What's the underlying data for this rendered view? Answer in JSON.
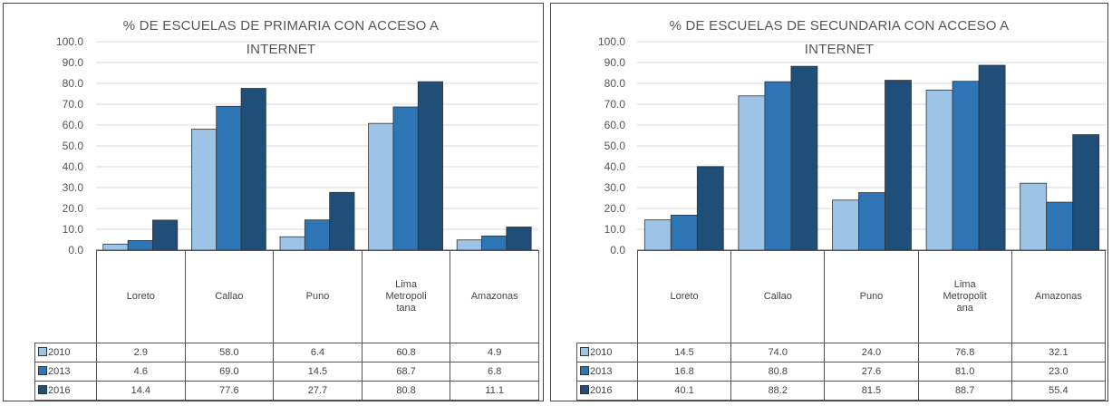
{
  "series_colors": {
    "2010": "#9dc3e6",
    "2013": "#2e75b6",
    "2016": "#1f4e79"
  },
  "chart_data": [
    {
      "type": "bar",
      "title": "% DE ESCUELAS DE PRIMARIA CON ACCESO A INTERNET",
      "title_lines": [
        "% DE ESCUELAS DE PRIMARIA CON ACCESO A",
        "INTERNET"
      ],
      "categories": [
        "Loreto",
        "Callao",
        "Puno",
        "Lima Metropolitana",
        "Amazonas"
      ],
      "category_lines": [
        [
          "Loreto"
        ],
        [
          "Callao"
        ],
        [
          "Puno"
        ],
        [
          "Lima",
          "Metropoli",
          "tana"
        ],
        [
          "Amazonas"
        ]
      ],
      "y_ticks": [
        "100.0",
        "90.0",
        "80.0",
        "70.0",
        "60.0",
        "50.0",
        "40.0",
        "30.0",
        "20.0",
        "10.0",
        "0.0"
      ],
      "ylim": [
        0,
        100
      ],
      "grid": true,
      "legend": "data-table",
      "series": [
        {
          "name": "2010",
          "values": [
            2.9,
            58.0,
            6.4,
            60.8,
            4.9
          ],
          "labels": [
            "2.9",
            "58.0",
            "6.4",
            "60.8",
            "4.9"
          ]
        },
        {
          "name": "2013",
          "values": [
            4.6,
            69.0,
            14.5,
            68.7,
            6.8
          ],
          "labels": [
            "4.6",
            "69.0",
            "14.5",
            "68.7",
            "6.8"
          ]
        },
        {
          "name": "2016",
          "values": [
            14.4,
            77.6,
            27.7,
            80.8,
            11.1
          ],
          "labels": [
            "14.4",
            "77.6",
            "27.7",
            "80.8",
            "11.1"
          ]
        }
      ]
    },
    {
      "type": "bar",
      "title": "% DE ESCUELAS DE SECUNDARIA CON ACCESO A INTERNET",
      "title_lines": [
        "% DE ESCUELAS DE SECUNDARIA CON ACCESO A",
        "INTERNET"
      ],
      "categories": [
        "Loreto",
        "Callao",
        "Puno",
        "Lima Metropolitana",
        "Amazonas"
      ],
      "category_lines": [
        [
          "Loreto"
        ],
        [
          "Callao"
        ],
        [
          "Puno"
        ],
        [
          "Lima",
          "Metropolit",
          "ana"
        ],
        [
          "Amazonas"
        ]
      ],
      "y_ticks": [
        "100.0",
        "90.0",
        "80.0",
        "70.0",
        "60.0",
        "50.0",
        "40.0",
        "30.0",
        "20.0",
        "10.0",
        "0.0"
      ],
      "ylim": [
        0,
        100
      ],
      "grid": true,
      "legend": "data-table",
      "series": [
        {
          "name": "2010",
          "values": [
            14.5,
            74.0,
            24.0,
            76.8,
            32.1
          ],
          "labels": [
            "14.5",
            "74.0",
            "24.0",
            "76.8",
            "32.1"
          ]
        },
        {
          "name": "2013",
          "values": [
            16.8,
            80.8,
            27.6,
            81.0,
            23.0
          ],
          "labels": [
            "16.8",
            "80.8",
            "27.6",
            "81.0",
            "23.0"
          ]
        },
        {
          "name": "2016",
          "values": [
            40.1,
            88.2,
            81.5,
            88.7,
            55.4
          ],
          "labels": [
            "40.1",
            "88.2",
            "81.5",
            "88.7",
            "55.4"
          ]
        }
      ]
    }
  ]
}
